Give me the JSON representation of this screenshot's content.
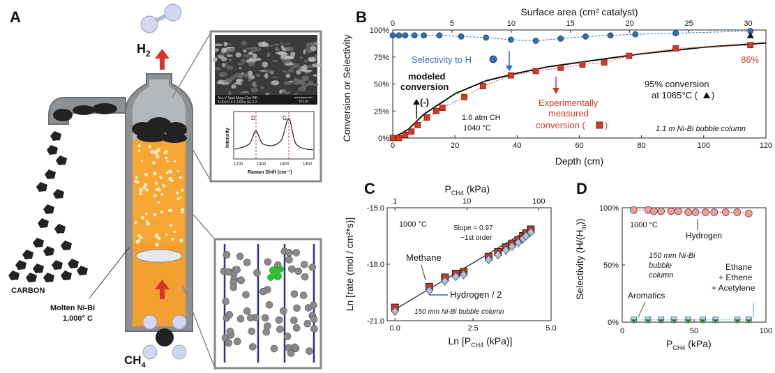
{
  "panelA": {
    "letter": "A",
    "h2_label": "H",
    "h2_sub": "2",
    "ch4_label": "CH",
    "ch4_sub": "4",
    "carbon_label": "CARBON",
    "molten_label_1": "Molten Ni-Bi",
    "molten_label_2": "1,000° C",
    "sem_caption": "Acc.V  Spot Magn   Det  WD",
    "sem_caption2": "5.00 kV 4.0  2000x   SE  5.2",
    "sem_scale": "10 µm",
    "raman": {
      "peak_d": "D",
      "peak_g": "G",
      "xlabel": "Raman Shift (cm⁻¹)",
      "ylabel": "Intensity",
      "ticks": [
        "1200",
        "1400",
        "1600",
        "1800"
      ]
    }
  },
  "chart_data": [
    {
      "panel": "B",
      "type": "scatter",
      "xlabel": "Depth (cm)",
      "x2label": "Surface area  (cm² catalyst)",
      "ylabel": "Conversion or Selectivity",
      "xlim": [
        0,
        120
      ],
      "x2lim": [
        0,
        31.5
      ],
      "ylim": [
        0,
        100
      ],
      "xticks": [
        "0",
        "20",
        "40",
        "60",
        "80",
        "100",
        "120"
      ],
      "x2ticks": [
        "0",
        "5",
        "10",
        "15",
        "20",
        "25",
        "30"
      ],
      "yticks": [
        "0%",
        "25%",
        "50%",
        "75%",
        "100%"
      ],
      "series": [
        {
          "name": "Selectivity to H₂",
          "color": "#2f6fb3",
          "x": [
            0,
            2,
            4,
            7,
            10,
            15,
            22,
            30,
            38,
            46,
            54,
            62,
            70,
            78,
            91,
            115
          ],
          "y": [
            95,
            95,
            95,
            95,
            95,
            95,
            94,
            93,
            91,
            90,
            92,
            94,
            95,
            96,
            97,
            99
          ]
        },
        {
          "name": "Experimentally measured conversion",
          "color": "#d43a2a",
          "x": [
            0,
            2,
            4,
            6,
            8,
            11,
            14,
            16,
            23,
            29,
            38,
            46,
            54,
            61,
            68,
            76,
            91,
            115
          ],
          "y": [
            0,
            0,
            3,
            6,
            12,
            19,
            25,
            28,
            38,
            48,
            58,
            62,
            65,
            68,
            70,
            76,
            83,
            86
          ]
        }
      ],
      "model_x": [
        0,
        5,
        10,
        20,
        30,
        40,
        50,
        60,
        70,
        80,
        90,
        100,
        110,
        120
      ],
      "model_y": [
        0,
        8,
        22,
        41,
        53,
        60,
        66,
        70,
        74,
        78,
        81,
        84,
        86,
        88
      ],
      "extra_point": {
        "x": 115,
        "y": 95
      },
      "annotations": {
        "selectivity_label": "Selectivity to H",
        "modeled_1": "modeled",
        "modeled_2": "conversion",
        "modeled_sym": "(-)",
        "exp_1": "Experimentally",
        "exp_2": "measured",
        "exp_3": "conversion (",
        "exp_close": ")",
        "pct86": "86%",
        "conv95_1": "95% conversion",
        "conv95_2": "at 1065°C (",
        "conv95_close": ")",
        "cond_1": "1.6 atm CH",
        "cond_2": "1040 °C",
        "column": "1.1 m Ni-Bi bubble column"
      }
    },
    {
      "panel": "C",
      "type": "scatter",
      "xlabel": "Ln [P",
      "xlabel_sub": "CH4",
      "xlabel_end": " (kPa)]",
      "x2label": "P",
      "x2label_sub": "CH4",
      "x2label_end": " (kPa)",
      "ylabel": "Ln [rate (mol / cm²*s)]",
      "xlim": [
        -0.25,
        5
      ],
      "ylim": [
        -21,
        -15
      ],
      "xticks": [
        "0.0",
        "2.5",
        "5.0"
      ],
      "x2ticks": [
        "1",
        "10",
        "100"
      ],
      "yticks": [
        "-15.0",
        "-18.0",
        "-21.0"
      ],
      "series": [
        {
          "name": "Methane",
          "color": "#c0392b",
          "x": [
            0.0,
            1.1,
            1.6,
            1.95,
            2.2,
            3.0,
            3.3,
            3.55,
            3.75,
            3.95,
            4.1,
            4.2,
            4.35
          ],
          "y": [
            -20.3,
            -19.2,
            -18.7,
            -18.5,
            -18.4,
            -17.6,
            -17.35,
            -17.1,
            -16.9,
            -16.7,
            -16.5,
            -16.35,
            -16.15
          ]
        },
        {
          "name": "Hydrogen / 2",
          "color": "#a9c3e6",
          "x": [
            0.0,
            1.1,
            1.6,
            1.95,
            2.2,
            3.0,
            3.3,
            3.55,
            3.75,
            3.95,
            4.1,
            4.2,
            4.35
          ],
          "y": [
            -20.5,
            -19.4,
            -18.9,
            -18.65,
            -18.55,
            -17.75,
            -17.5,
            -17.25,
            -17.05,
            -16.85,
            -16.65,
            -16.5,
            -16.3
          ]
        }
      ],
      "fit": {
        "x": [
          -0.1,
          4.45
        ],
        "y": [
          -20.5,
          -16.0
        ]
      },
      "annotations": {
        "temp": "1000 °C",
        "slope": "Slope = 0.97",
        "order": "~1st order",
        "methane": "Methane",
        "hydrogen": "Hydrogen / 2",
        "column": "150 mm Ni-Bi bubble column"
      }
    },
    {
      "panel": "D",
      "type": "scatter",
      "xlabel": "P",
      "xlabel_sub": "CH4",
      "xlabel_end": " (kPa)",
      "ylabel": "Selectivity (H/(H",
      "ylabel_sub": "in",
      "ylabel_end": "))",
      "xlim": [
        0,
        100
      ],
      "ylim": [
        0,
        100
      ],
      "xticks": [
        "0",
        "50",
        "100"
      ],
      "yticks": [
        "0%",
        "50%",
        "100%"
      ],
      "series": [
        {
          "name": "Hydrogen",
          "color": "#e6a0a0",
          "x": [
            8,
            18,
            22,
            27,
            34,
            39,
            46,
            51,
            58,
            64,
            72,
            80,
            88
          ],
          "y": [
            98,
            98,
            97,
            97,
            97,
            97,
            96,
            96,
            96,
            96,
            96,
            96,
            95
          ]
        },
        {
          "name": "Ethane + Ethene + Acetylene",
          "color": "#aee0ee",
          "x": [
            8,
            18,
            27,
            36,
            46,
            56,
            65,
            80,
            88
          ],
          "y": [
            2,
            2,
            2,
            2,
            2,
            2,
            2,
            2,
            2
          ]
        },
        {
          "name": "Aromatics",
          "color": "#4a6b2a",
          "x": [
            8,
            18,
            27,
            36,
            46,
            56,
            65,
            80,
            88
          ],
          "y": [
            0.5,
            0.5,
            0.5,
            0.5,
            0.5,
            0.5,
            0.5,
            0.5,
            0.5
          ]
        }
      ],
      "annotations": {
        "temp": "1000 °C",
        "hydrogen": "Hydrogen",
        "column_1": "150 mm Ni-Bi",
        "column_2": "bubble",
        "column_3": "column",
        "c2_1": "Ethane",
        "c2_2": "+ Ethene",
        "c2_3": "+ Acetylene",
        "aromatics": "Aromatics"
      }
    }
  ],
  "panel_letters": {
    "b": "B",
    "c": "C",
    "d": "D"
  }
}
